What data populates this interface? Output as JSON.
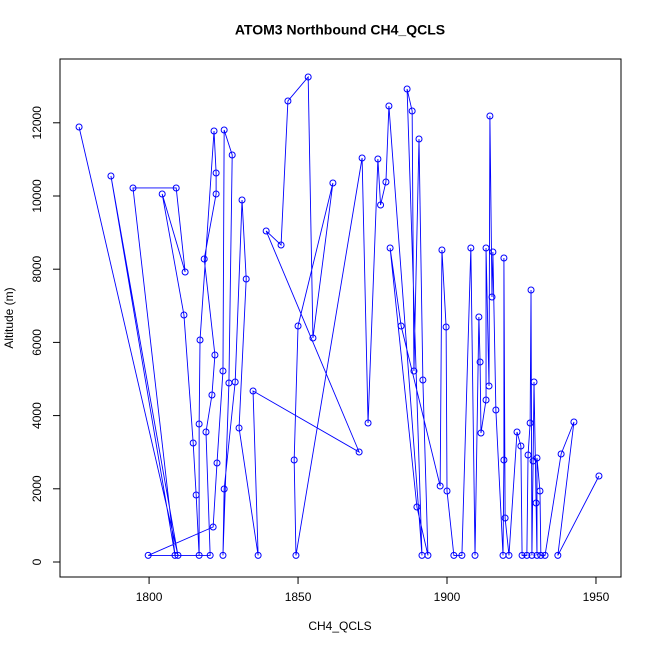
{
  "chart_data": {
    "type": "line",
    "title": "ATOM3 Northbound CH4_QCLS",
    "x_label": "CH4_QCLS",
    "y_label": "Altitude (m)",
    "xlim": [
      1770.1,
      1958.4
    ],
    "ylim": [
      -410,
      13743
    ],
    "xticks": [
      1800,
      1850,
      1900,
      1950
    ],
    "yticks": [
      0,
      2000,
      4000,
      6000,
      8000,
      10000,
      12000
    ],
    "series": [
      {
        "color": "#0000ff",
        "marker": "circle",
        "x": [
          1776.5,
          1809.7,
          1787.2,
          1808.7,
          1794.6,
          1809.1,
          1812.1,
          1804.4,
          1811.7,
          1814.8,
          1815.8,
          1816.8,
          1816.8,
          1817.1,
          1821.8,
          1822.5,
          1822.5,
          1818.5,
          1822.1,
          1821.1,
          1819.1,
          1820.5,
          1799.7,
          1821.5,
          1822.8,
          1824.8,
          1825.2,
          1827.9,
          1826.8,
          1824.8,
          1825.2,
          1828.9,
          1831.2,
          1832.6,
          1830.2,
          1836.6,
          1834.9,
          1870.5,
          1839.3,
          1844.3,
          1846.6,
          1853.4,
          1855.0,
          1861.7,
          1850.0,
          1848.7,
          1849.3,
          1871.5,
          1873.5,
          1876.8,
          1877.7,
          1879.5,
          1880.5,
          1891.6,
          1886.6,
          1888.3,
          1888.9,
          1890.6,
          1891.9,
          1893.6,
          1889.9,
          1880.9,
          1884.6,
          1897.7,
          1898.3,
          1899.7,
          1900.0,
          1902.3,
          1905.0,
          1908.0,
          1909.4,
          1910.7,
          1911.1,
          1911.4,
          1913.1,
          1913.1,
          1914.1,
          1914.4,
          1915.1,
          1915.4,
          1916.4,
          1918.8,
          1919.1,
          1919.1,
          1919.5,
          1920.8,
          1923.5,
          1924.8,
          1925.2,
          1926.8,
          1927.2,
          1927.9,
          1928.2,
          1928.5,
          1928.9,
          1929.2,
          1929.9,
          1930.2,
          1930.2,
          1931.2,
          1931.5,
          1932.9,
          1938.3,
          1942.6,
          1937.2,
          1951.0
        ],
        "values": [
          11885,
          180,
          10546,
          180,
          10219,
          10219,
          7923,
          10055,
          6749,
          3251,
          1830,
          180,
          3770,
          6066,
          11776,
          10628,
          10055,
          8279,
          5656,
          4563,
          3552,
          180,
          180,
          956,
          2705,
          5219,
          11803,
          11120,
          4891,
          180,
          1995,
          4918,
          9891,
          7732,
          3661,
          180,
          4672,
          3005,
          9044,
          8661,
          12596,
          13251,
          6120,
          10355,
          6448,
          2787,
          180,
          11038,
          3798,
          11011,
          9754,
          10383,
          12459,
          180,
          12923,
          12322,
          5219,
          11557,
          4973,
          180,
          1503,
          8579,
          6448,
          2077,
          8525,
          6421,
          1940,
          180,
          180,
          8579,
          180,
          6694,
          5464,
          3525,
          4426,
          8579,
          4809,
          12186,
          7240,
          8470,
          4153,
          180,
          2787,
          8306,
          1202,
          180,
          3552,
          3169,
          180,
          180,
          2923,
          3798,
          7432,
          180,
          2760,
          4918,
          1612,
          180,
          2842,
          1940,
          180,
          180,
          2951,
          3825,
          180,
          2350
        ]
      }
    ]
  }
}
